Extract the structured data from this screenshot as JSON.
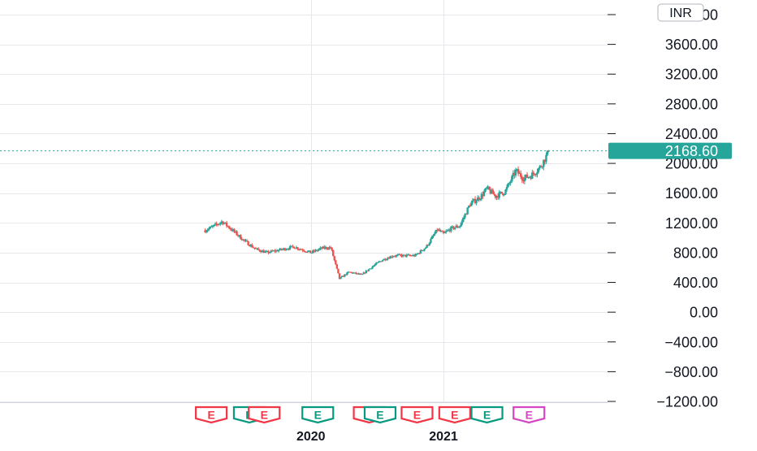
{
  "currency_badge": "INR",
  "last_price_label": "2168.60",
  "colors": {
    "up": "#26a69a",
    "down": "#ef5350",
    "grid": "#e6e8ec",
    "axis_text": "#131722",
    "last_price": "#26a69a",
    "event_red": "#f23645",
    "event_green": "#089981",
    "event_pink": "#d446c2"
  },
  "chart_data": {
    "type": "candlestick",
    "ylim": [
      -1300,
      4100
    ],
    "y_ticks": [
      "4000.00",
      "3600.00",
      "3200.00",
      "2800.00",
      "2400.00",
      "2000.00",
      "1600.00",
      "1200.00",
      "800.00",
      "400.00",
      "0.00",
      "−400.00",
      "−800.00",
      "−1200.00"
    ],
    "y_tick_values": [
      4000,
      3600,
      3200,
      2800,
      2400,
      2000,
      1600,
      1200,
      800,
      400,
      0,
      -400,
      -800,
      -1200
    ],
    "x_ticks": [
      "2020",
      "2021"
    ],
    "x_tick_dates": [
      "2020-01-01",
      "2021-01-01"
    ],
    "date_range": [
      "2019-03-15",
      "2021-10-20"
    ],
    "last_price": 2168.6,
    "price_path": [
      {
        "date": "2019-03-15",
        "close": 1100
      },
      {
        "date": "2019-04-10",
        "close": 1160
      },
      {
        "date": "2019-05-01",
        "close": 1220
      },
      {
        "date": "2019-06-01",
        "close": 1090
      },
      {
        "date": "2019-07-01",
        "close": 960
      },
      {
        "date": "2019-08-01",
        "close": 850
      },
      {
        "date": "2019-09-01",
        "close": 800
      },
      {
        "date": "2019-10-01",
        "close": 830
      },
      {
        "date": "2019-11-15",
        "close": 880
      },
      {
        "date": "2020-01-01",
        "close": 800
      },
      {
        "date": "2020-02-01",
        "close": 860
      },
      {
        "date": "2020-02-25",
        "close": 870
      },
      {
        "date": "2020-03-20",
        "close": 450
      },
      {
        "date": "2020-04-15",
        "close": 540
      },
      {
        "date": "2020-05-20",
        "close": 500
      },
      {
        "date": "2020-06-15",
        "close": 600
      },
      {
        "date": "2020-07-15",
        "close": 700
      },
      {
        "date": "2020-08-15",
        "close": 760
      },
      {
        "date": "2020-09-15",
        "close": 760
      },
      {
        "date": "2020-10-15",
        "close": 760
      },
      {
        "date": "2020-11-15",
        "close": 880
      },
      {
        "date": "2020-12-15",
        "close": 1110
      },
      {
        "date": "2021-01-01",
        "close": 1050
      },
      {
        "date": "2021-01-20",
        "close": 1120
      },
      {
        "date": "2021-02-15",
        "close": 1160
      },
      {
        "date": "2021-03-15",
        "close": 1450
      },
      {
        "date": "2021-04-15",
        "close": 1560
      },
      {
        "date": "2021-05-01",
        "close": 1660
      },
      {
        "date": "2021-05-25",
        "close": 1560
      },
      {
        "date": "2021-06-20",
        "close": 1620
      },
      {
        "date": "2021-07-20",
        "close": 1900
      },
      {
        "date": "2021-08-10",
        "close": 1800
      },
      {
        "date": "2021-09-01",
        "close": 1840
      },
      {
        "date": "2021-09-25",
        "close": 1950
      },
      {
        "date": "2021-10-20",
        "close": 2168.6
      }
    ],
    "events": [
      {
        "date": "2019-04-01",
        "label": "E",
        "color": "red"
      },
      {
        "date": "2019-07-15",
        "label": "E",
        "color": "green"
      },
      {
        "date": "2019-08-25",
        "label": "E",
        "color": "red"
      },
      {
        "date": "2020-01-20",
        "label": "E",
        "color": "green"
      },
      {
        "date": "2020-06-10",
        "label": "E",
        "color": "red"
      },
      {
        "date": "2020-07-10",
        "label": "E",
        "color": "green"
      },
      {
        "date": "2020-10-20",
        "label": "E",
        "color": "red"
      },
      {
        "date": "2021-02-01",
        "label": "E",
        "color": "red"
      },
      {
        "date": "2021-05-01",
        "label": "E",
        "color": "green"
      },
      {
        "date": "2021-08-25",
        "label": "E",
        "color": "pink"
      }
    ]
  }
}
